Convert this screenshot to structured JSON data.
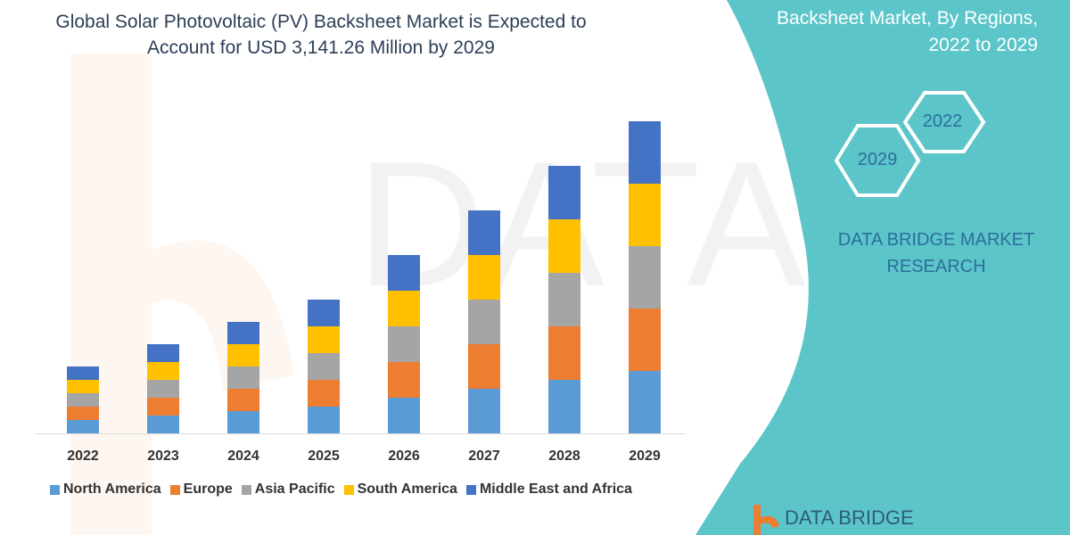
{
  "title_line1": "Global Solar Photovoltaic (PV) Backsheet Market is Expected to",
  "title_line2": "Account for USD 3,141.26 Million by 2029",
  "side_panel": {
    "line1": "Backsheet Market, By Regions,",
    "line2": "2022 to 2029",
    "hex_years": [
      "2022",
      "2029"
    ],
    "brand_line1": "DATA BRIDGE MARKET",
    "brand_line2": "RESEARCH",
    "logo_text": "DATA BRIDGE",
    "panel_color": "#5cc5c9"
  },
  "chart_data": {
    "type": "bar",
    "stacked": true,
    "title": "Global Solar Photovoltaic (PV) Backsheet Market is Expected to Account for USD 3,141.26 Million by 2029",
    "xlabel": "",
    "ylabel": "",
    "y_axis_shown": false,
    "grid": false,
    "legend_position": "bottom",
    "ylim": [
      0,
      360
    ],
    "categories": [
      "2022",
      "2023",
      "2024",
      "2025",
      "2026",
      "2027",
      "2028",
      "2029"
    ],
    "series": [
      {
        "name": "North America",
        "color": "#5b9bd5",
        "values": [
          15,
          20,
          25,
          30,
          40,
          50,
          60,
          70
        ]
      },
      {
        "name": "Europe",
        "color": "#ed7d31",
        "values": [
          15,
          20,
          25,
          30,
          40,
          50,
          60,
          70
        ]
      },
      {
        "name": "Asia Pacific",
        "color": "#a5a5a5",
        "values": [
          15,
          20,
          25,
          30,
          40,
          50,
          60,
          70
        ]
      },
      {
        "name": "South America",
        "color": "#ffc000",
        "values": [
          15,
          20,
          25,
          30,
          40,
          50,
          60,
          70
        ]
      },
      {
        "name": "Middle East and Africa",
        "color": "#4472c4",
        "values": [
          15,
          20,
          25,
          30,
          40,
          50,
          60,
          70
        ]
      }
    ]
  }
}
